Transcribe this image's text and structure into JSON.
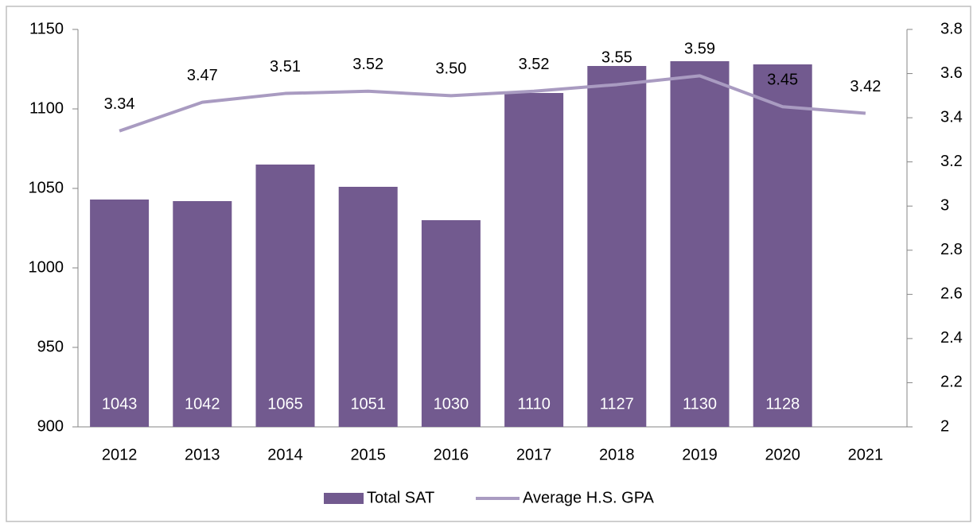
{
  "chart_data": {
    "type": "bar",
    "categories": [
      "2012",
      "2013",
      "2014",
      "2015",
      "2016",
      "2017",
      "2018",
      "2019",
      "2020",
      "2021"
    ],
    "series": [
      {
        "name": "Total SAT",
        "type": "bar",
        "color": "#725a8f",
        "values": [
          1043,
          1042,
          1065,
          1051,
          1030,
          1110,
          1127,
          1130,
          1128,
          null
        ]
      },
      {
        "name": "Average H.S. GPA",
        "type": "line",
        "axis": "y2",
        "color": "#a99bc1",
        "values": [
          3.34,
          3.47,
          3.51,
          3.52,
          3.5,
          3.52,
          3.55,
          3.59,
          3.45,
          3.42
        ],
        "value_labels": [
          "3.34",
          "3.47",
          "3.51",
          "3.52",
          "3.50",
          "3.52",
          "3.55",
          "3.59",
          "3.45",
          "3.42"
        ]
      }
    ],
    "ylim": [
      900,
      1150
    ],
    "yticks": [
      900,
      950,
      1000,
      1050,
      1100,
      1150
    ],
    "y2lim": [
      2,
      3.8
    ],
    "y2ticks": [
      2,
      2.2,
      2.4,
      2.6,
      2.8,
      3,
      3.2,
      3.4,
      3.6,
      3.8
    ],
    "grid": false,
    "legend": "bottom"
  }
}
